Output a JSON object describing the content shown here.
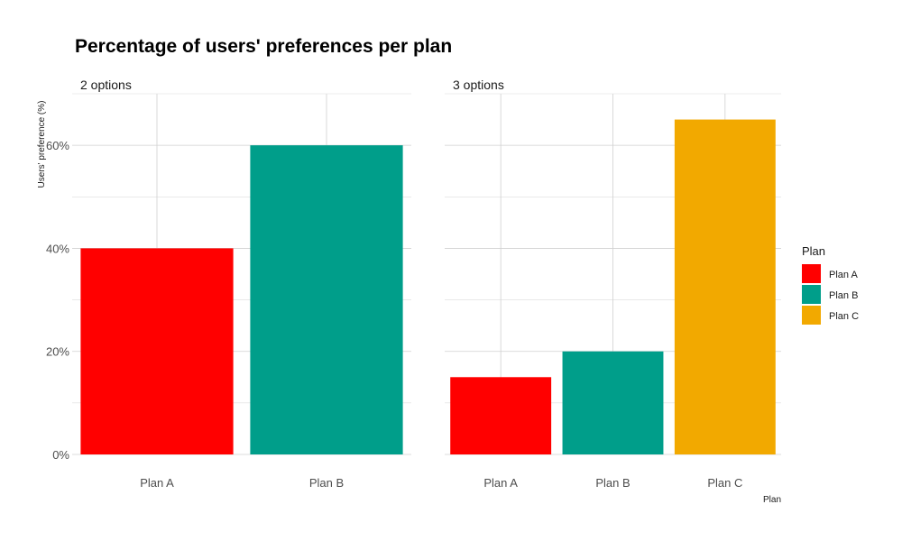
{
  "chart_data": {
    "type": "bar",
    "title": "Percentage of users' preferences per plan",
    "ylabel": "Users' preference (%)",
    "xlabel": "Plan",
    "ylim": [
      0,
      70
    ],
    "y_ticks": [
      0,
      20,
      40,
      60
    ],
    "y_tick_labels": [
      "0%",
      "20%",
      "40%",
      "60%"
    ],
    "grid": true,
    "legend": {
      "title": "Plan",
      "placement": "right",
      "entries": [
        {
          "label": "Plan A",
          "color": "#ff0000"
        },
        {
          "label": "Plan B",
          "color": "#009e8a"
        },
        {
          "label": "Plan C",
          "color": "#f2a900"
        }
      ]
    },
    "facets": [
      {
        "label": "2 options",
        "categories": [
          "Plan A",
          "Plan B"
        ],
        "values": [
          40,
          60
        ],
        "colors": [
          "#ff0000",
          "#009e8a"
        ]
      },
      {
        "label": "3 options",
        "categories": [
          "Plan A",
          "Plan B",
          "Plan C"
        ],
        "values": [
          15,
          20,
          65
        ],
        "colors": [
          "#ff0000",
          "#009e8a",
          "#f2a900"
        ]
      }
    ]
  }
}
